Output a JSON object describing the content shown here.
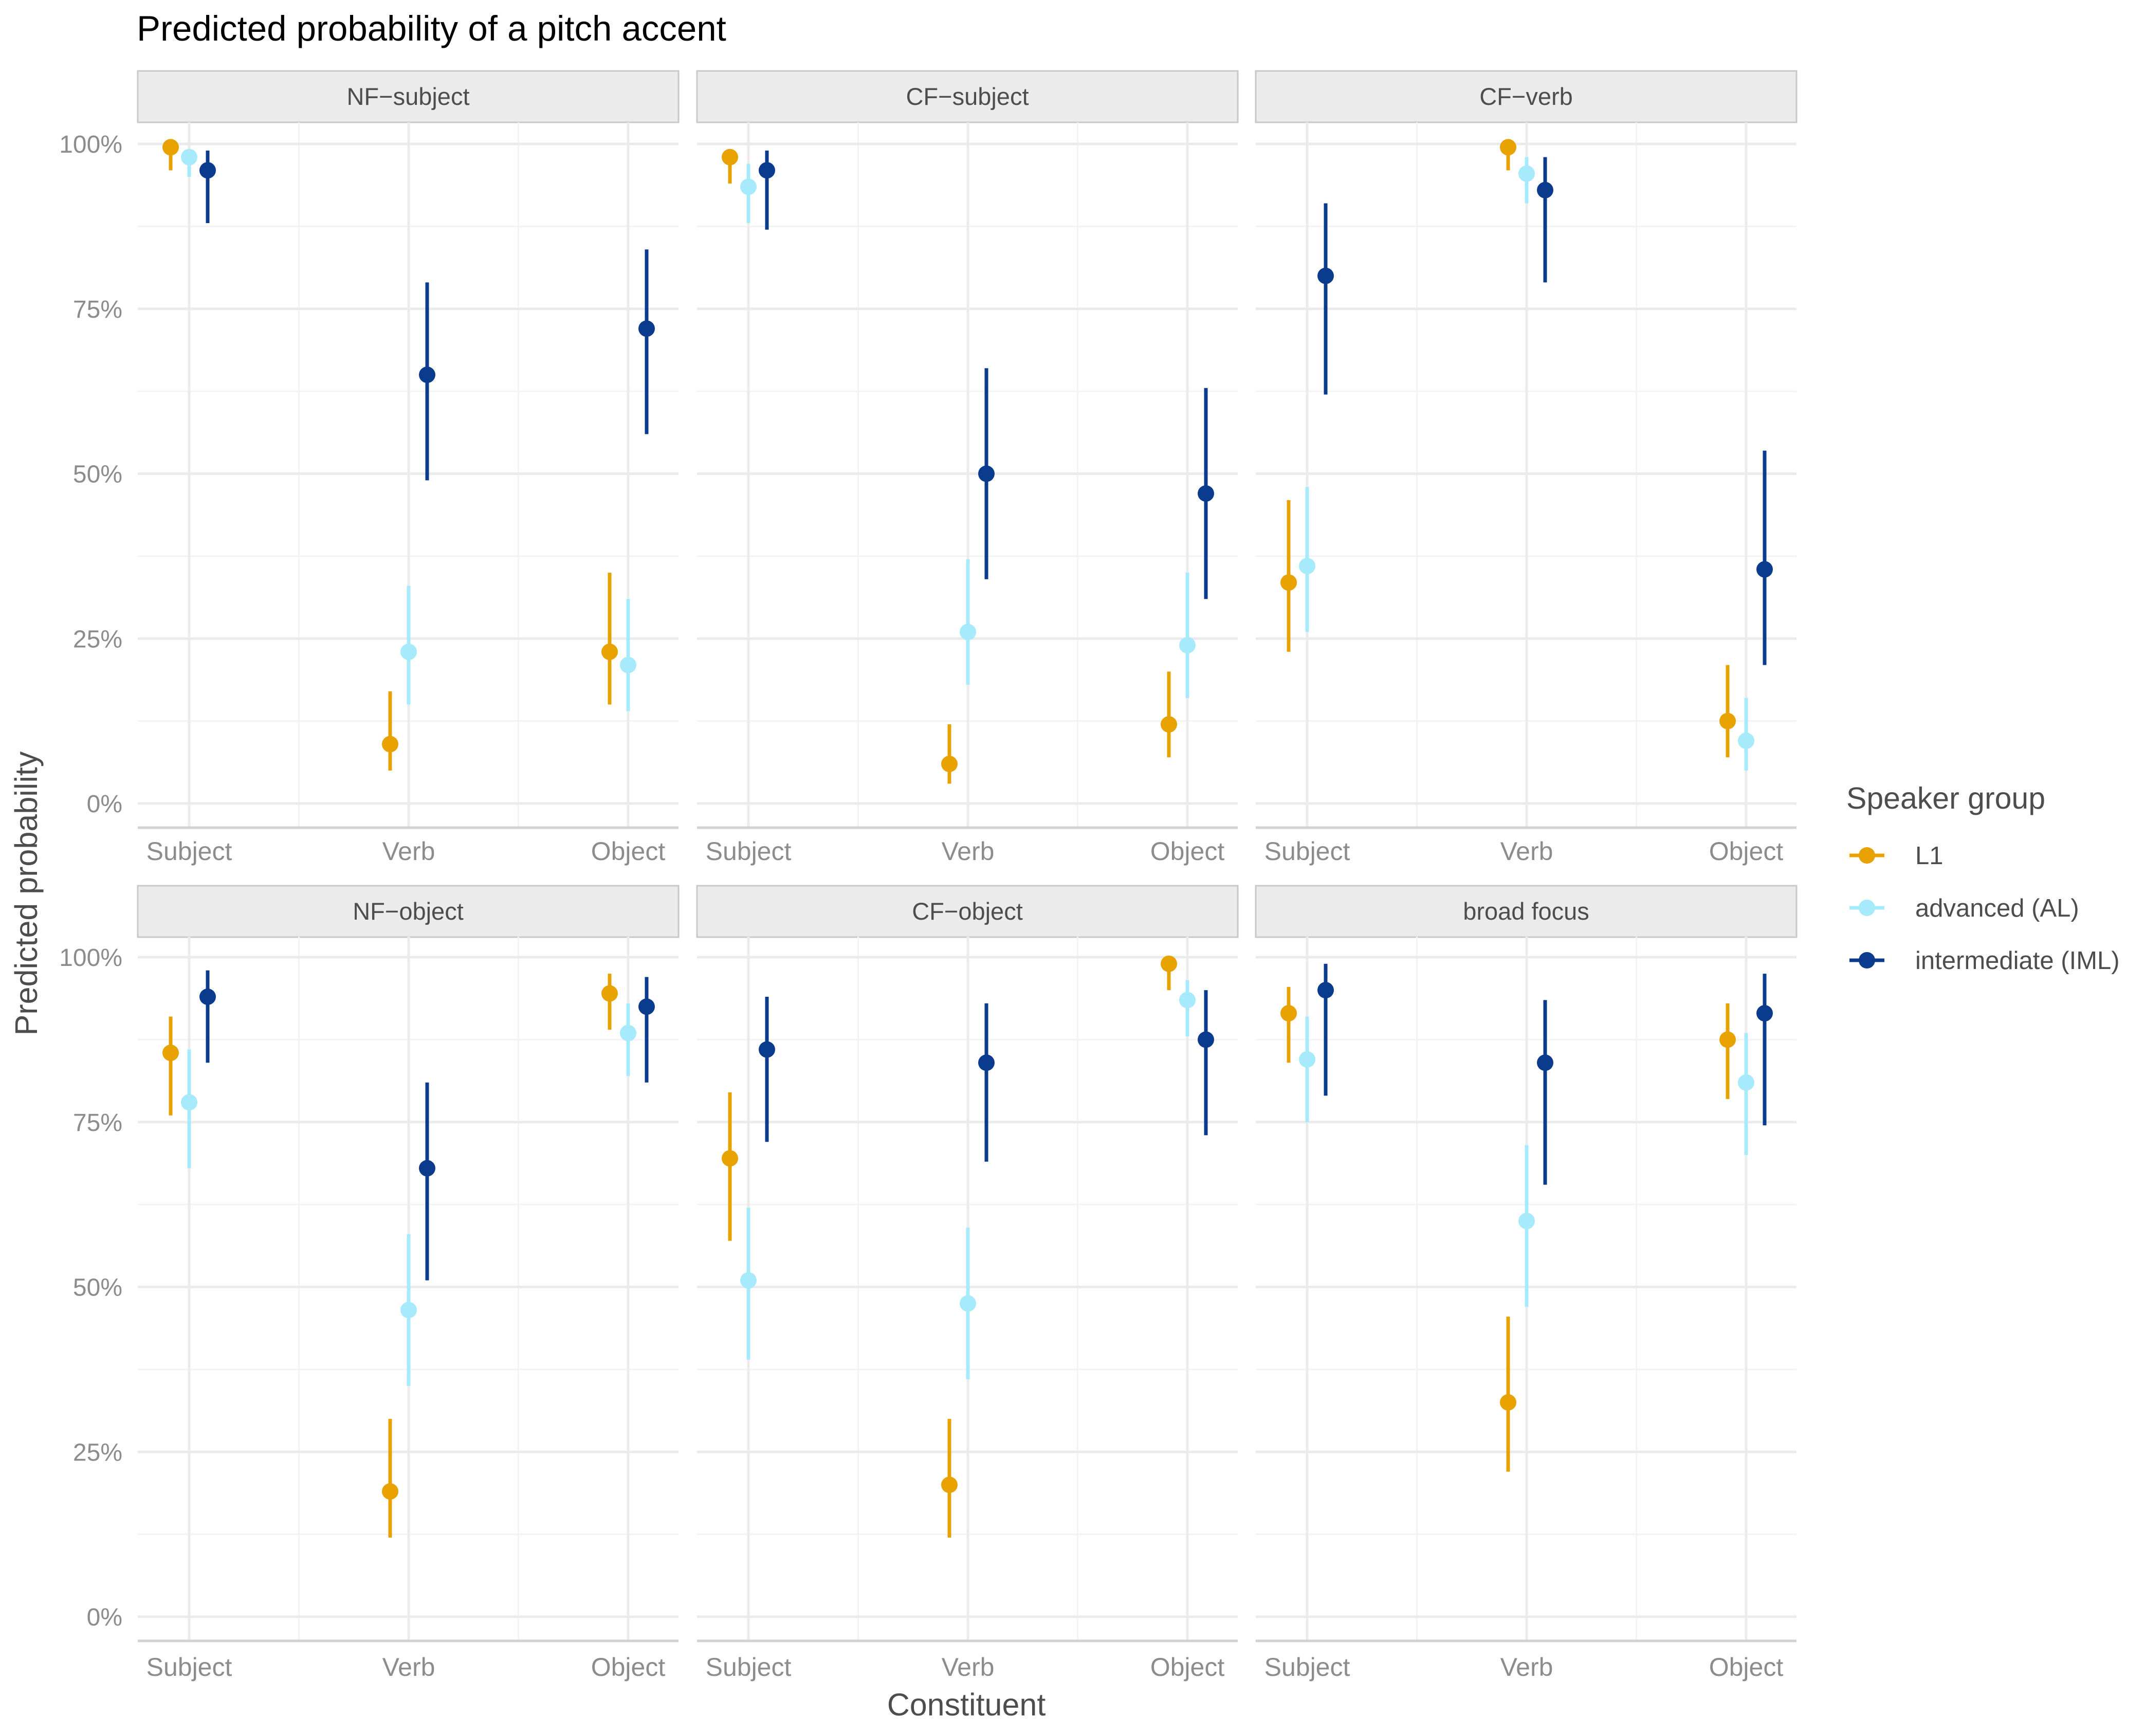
{
  "chart_data": {
    "type": "scatter",
    "subtype": "point-range (faceted)",
    "title": "Predicted probability of a pitch accent",
    "xlabel": "Constituent",
    "ylabel": "Predicted probability",
    "categories": [
      "Subject",
      "Verb",
      "Object"
    ],
    "ylim": [
      0,
      1
    ],
    "yticks": [
      0,
      0.25,
      0.5,
      0.75,
      1.0
    ],
    "ytick_labels": [
      "0%",
      "25%",
      "50%",
      "75%",
      "100%"
    ],
    "grid": true,
    "legend": {
      "title": "Speaker group",
      "position": "right",
      "entries": [
        {
          "name": "L1",
          "color": "#E8A200"
        },
        {
          "name": "advanced (AL)",
          "color": "#A6EAFB"
        },
        {
          "name": "intermediate (IML)",
          "color": "#0B3B8C"
        }
      ]
    },
    "facets": [
      {
        "label": "NF−subject",
        "series": [
          {
            "name": "L1",
            "points": [
              {
                "x": "Subject",
                "y": 0.995,
                "lo": 0.96,
                "hi": 1.0
              },
              {
                "x": "Verb",
                "y": 0.09,
                "lo": 0.05,
                "hi": 0.17
              },
              {
                "x": "Object",
                "y": 0.23,
                "lo": 0.15,
                "hi": 0.35
              }
            ]
          },
          {
            "name": "advanced (AL)",
            "points": [
              {
                "x": "Subject",
                "y": 0.98,
                "lo": 0.95,
                "hi": 0.99
              },
              {
                "x": "Verb",
                "y": 0.23,
                "lo": 0.15,
                "hi": 0.33
              },
              {
                "x": "Object",
                "y": 0.21,
                "lo": 0.14,
                "hi": 0.31
              }
            ]
          },
          {
            "name": "intermediate (IML)",
            "points": [
              {
                "x": "Subject",
                "y": 0.96,
                "lo": 0.88,
                "hi": 0.99
              },
              {
                "x": "Verb",
                "y": 0.65,
                "lo": 0.49,
                "hi": 0.79
              },
              {
                "x": "Object",
                "y": 0.72,
                "lo": 0.56,
                "hi": 0.84
              }
            ]
          }
        ]
      },
      {
        "label": "CF−subject",
        "series": [
          {
            "name": "L1",
            "points": [
              {
                "x": "Subject",
                "y": 0.98,
                "lo": 0.94,
                "hi": 0.99
              },
              {
                "x": "Verb",
                "y": 0.06,
                "lo": 0.03,
                "hi": 0.12
              },
              {
                "x": "Object",
                "y": 0.12,
                "lo": 0.07,
                "hi": 0.2
              }
            ]
          },
          {
            "name": "advanced (AL)",
            "points": [
              {
                "x": "Subject",
                "y": 0.935,
                "lo": 0.88,
                "hi": 0.97
              },
              {
                "x": "Verb",
                "y": 0.26,
                "lo": 0.18,
                "hi": 0.37
              },
              {
                "x": "Object",
                "y": 0.24,
                "lo": 0.16,
                "hi": 0.35
              }
            ]
          },
          {
            "name": "intermediate (IML)",
            "points": [
              {
                "x": "Subject",
                "y": 0.96,
                "lo": 0.87,
                "hi": 0.99
              },
              {
                "x": "Verb",
                "y": 0.5,
                "lo": 0.34,
                "hi": 0.66
              },
              {
                "x": "Object",
                "y": 0.47,
                "lo": 0.31,
                "hi": 0.63
              }
            ]
          }
        ]
      },
      {
        "label": "CF−verb",
        "series": [
          {
            "name": "L1",
            "points": [
              {
                "x": "Subject",
                "y": 0.335,
                "lo": 0.23,
                "hi": 0.46
              },
              {
                "x": "Verb",
                "y": 0.995,
                "lo": 0.96,
                "hi": 1.0
              },
              {
                "x": "Object",
                "y": 0.125,
                "lo": 0.07,
                "hi": 0.21
              }
            ]
          },
          {
            "name": "advanced (AL)",
            "points": [
              {
                "x": "Subject",
                "y": 0.36,
                "lo": 0.26,
                "hi": 0.48
              },
              {
                "x": "Verb",
                "y": 0.955,
                "lo": 0.91,
                "hi": 0.98
              },
              {
                "x": "Object",
                "y": 0.095,
                "lo": 0.05,
                "hi": 0.16
              }
            ]
          },
          {
            "name": "intermediate (IML)",
            "points": [
              {
                "x": "Subject",
                "y": 0.8,
                "lo": 0.62,
                "hi": 0.91
              },
              {
                "x": "Verb",
                "y": 0.93,
                "lo": 0.79,
                "hi": 0.98
              },
              {
                "x": "Object",
                "y": 0.355,
                "lo": 0.21,
                "hi": 0.535
              }
            ]
          }
        ]
      },
      {
        "label": "NF−object",
        "series": [
          {
            "name": "L1",
            "points": [
              {
                "x": "Subject",
                "y": 0.855,
                "lo": 0.76,
                "hi": 0.91
              },
              {
                "x": "Verb",
                "y": 0.19,
                "lo": 0.12,
                "hi": 0.3
              },
              {
                "x": "Object",
                "y": 0.945,
                "lo": 0.89,
                "hi": 0.975
              }
            ]
          },
          {
            "name": "advanced (AL)",
            "points": [
              {
                "x": "Subject",
                "y": 0.78,
                "lo": 0.68,
                "hi": 0.86
              },
              {
                "x": "Verb",
                "y": 0.465,
                "lo": 0.35,
                "hi": 0.58
              },
              {
                "x": "Object",
                "y": 0.885,
                "lo": 0.82,
                "hi": 0.93
              }
            ]
          },
          {
            "name": "intermediate (IML)",
            "points": [
              {
                "x": "Subject",
                "y": 0.94,
                "lo": 0.84,
                "hi": 0.98
              },
              {
                "x": "Verb",
                "y": 0.68,
                "lo": 0.51,
                "hi": 0.81
              },
              {
                "x": "Object",
                "y": 0.925,
                "lo": 0.81,
                "hi": 0.97
              }
            ]
          }
        ]
      },
      {
        "label": "CF−object",
        "series": [
          {
            "name": "L1",
            "points": [
              {
                "x": "Subject",
                "y": 0.695,
                "lo": 0.57,
                "hi": 0.795
              },
              {
                "x": "Verb",
                "y": 0.2,
                "lo": 0.12,
                "hi": 0.3
              },
              {
                "x": "Object",
                "y": 0.99,
                "lo": 0.95,
                "hi": 1.0
              }
            ]
          },
          {
            "name": "advanced (AL)",
            "points": [
              {
                "x": "Subject",
                "y": 0.51,
                "lo": 0.39,
                "hi": 0.62
              },
              {
                "x": "Verb",
                "y": 0.475,
                "lo": 0.36,
                "hi": 0.59
              },
              {
                "x": "Object",
                "y": 0.935,
                "lo": 0.88,
                "hi": 0.965
              }
            ]
          },
          {
            "name": "intermediate (IML)",
            "points": [
              {
                "x": "Subject",
                "y": 0.86,
                "lo": 0.72,
                "hi": 0.94
              },
              {
                "x": "Verb",
                "y": 0.84,
                "lo": 0.69,
                "hi": 0.93
              },
              {
                "x": "Object",
                "y": 0.875,
                "lo": 0.73,
                "hi": 0.95
              }
            ]
          }
        ]
      },
      {
        "label": "broad focus",
        "series": [
          {
            "name": "L1",
            "points": [
              {
                "x": "Subject",
                "y": 0.915,
                "lo": 0.84,
                "hi": 0.955
              },
              {
                "x": "Verb",
                "y": 0.325,
                "lo": 0.22,
                "hi": 0.455
              },
              {
                "x": "Object",
                "y": 0.875,
                "lo": 0.785,
                "hi": 0.93
              }
            ]
          },
          {
            "name": "advanced (AL)",
            "points": [
              {
                "x": "Subject",
                "y": 0.845,
                "lo": 0.75,
                "hi": 0.91
              },
              {
                "x": "Verb",
                "y": 0.6,
                "lo": 0.47,
                "hi": 0.715
              },
              {
                "x": "Object",
                "y": 0.81,
                "lo": 0.7,
                "hi": 0.885
              }
            ]
          },
          {
            "name": "intermediate (IML)",
            "points": [
              {
                "x": "Subject",
                "y": 0.95,
                "lo": 0.79,
                "hi": 0.99
              },
              {
                "x": "Verb",
                "y": 0.84,
                "lo": 0.655,
                "hi": 0.935
              },
              {
                "x": "Object",
                "y": 0.915,
                "lo": 0.745,
                "hi": 0.975
              }
            ]
          }
        ]
      }
    ]
  }
}
